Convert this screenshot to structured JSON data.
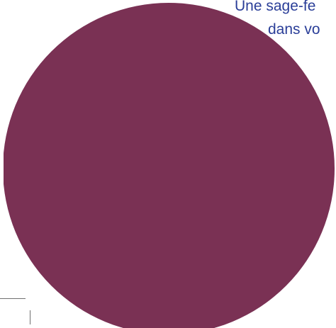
{
  "headline": {
    "line1": "Une sage-fe",
    "line2": "dans vo"
  },
  "colors": {
    "circle": "#7a3154",
    "text": "#2a3e98",
    "rule": "#6f6f6f",
    "background": "#ffffff"
  }
}
